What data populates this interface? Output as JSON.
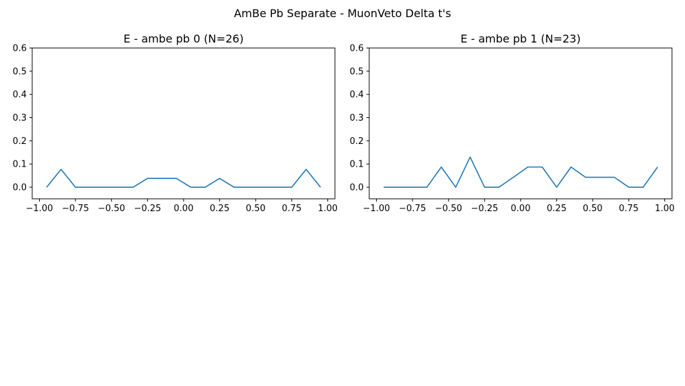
{
  "figure": {
    "suptitle": "AmBe Pb Separate - MuonVeto Delta t's"
  },
  "chart_data": [
    {
      "type": "line",
      "title": "E - ambe pb 0 (N=26)",
      "xlabel": "",
      "ylabel": "",
      "xlim": [
        -1.05,
        1.05
      ],
      "ylim": [
        -0.05,
        0.6
      ],
      "grid": false,
      "color": "#1f77b4",
      "xticks": [
        -1.0,
        -0.75,
        -0.5,
        -0.25,
        0.0,
        0.25,
        0.5,
        0.75,
        1.0
      ],
      "xtick_labels": [
        "−1.00",
        "−0.75",
        "−0.50",
        "−0.25",
        "0.00",
        "0.25",
        "0.50",
        "0.75",
        "1.00"
      ],
      "yticks": [
        0.0,
        0.1,
        0.2,
        0.3,
        0.4,
        0.5,
        0.6
      ],
      "ytick_labels": [
        "0.0",
        "0.1",
        "0.2",
        "0.3",
        "0.4",
        "0.5",
        "0.6"
      ],
      "x": [
        -0.95,
        -0.85,
        -0.75,
        -0.65,
        -0.55,
        -0.45,
        -0.35,
        -0.25,
        -0.15,
        -0.05,
        0.05,
        0.15,
        0.25,
        0.35,
        0.45,
        0.55,
        0.65,
        0.75,
        0.85,
        0.95
      ],
      "values": [
        0.0,
        0.077,
        0.0,
        0.0,
        0.0,
        0.0,
        0.0,
        0.038,
        0.038,
        0.038,
        0.0,
        0.0,
        0.038,
        0.0,
        0.0,
        0.0,
        0.0,
        0.0,
        0.077,
        0.0
      ]
    },
    {
      "type": "line",
      "title": "E - ambe pb 1 (N=23)",
      "xlabel": "",
      "ylabel": "",
      "xlim": [
        -1.05,
        1.05
      ],
      "ylim": [
        -0.05,
        0.6
      ],
      "grid": false,
      "color": "#1f77b4",
      "xticks": [
        -1.0,
        -0.75,
        -0.5,
        -0.25,
        0.0,
        0.25,
        0.5,
        0.75,
        1.0
      ],
      "xtick_labels": [
        "−1.00",
        "−0.75",
        "−0.50",
        "−0.25",
        "0.00",
        "0.25",
        "0.50",
        "0.75",
        "1.00"
      ],
      "yticks": [
        0.0,
        0.1,
        0.2,
        0.3,
        0.4,
        0.5,
        0.6
      ],
      "ytick_labels": [
        "0.0",
        "0.1",
        "0.2",
        "0.3",
        "0.4",
        "0.5",
        "0.6"
      ],
      "x": [
        -0.95,
        -0.85,
        -0.75,
        -0.65,
        -0.55,
        -0.45,
        -0.35,
        -0.25,
        -0.15,
        -0.05,
        0.05,
        0.15,
        0.25,
        0.35,
        0.45,
        0.55,
        0.65,
        0.75,
        0.85,
        0.95
      ],
      "values": [
        0.0,
        0.0,
        0.0,
        0.0,
        0.087,
        0.0,
        0.13,
        0.0,
        0.0,
        0.043,
        0.087,
        0.087,
        0.0,
        0.087,
        0.043,
        0.043,
        0.043,
        0.0,
        0.0,
        0.087
      ]
    }
  ]
}
